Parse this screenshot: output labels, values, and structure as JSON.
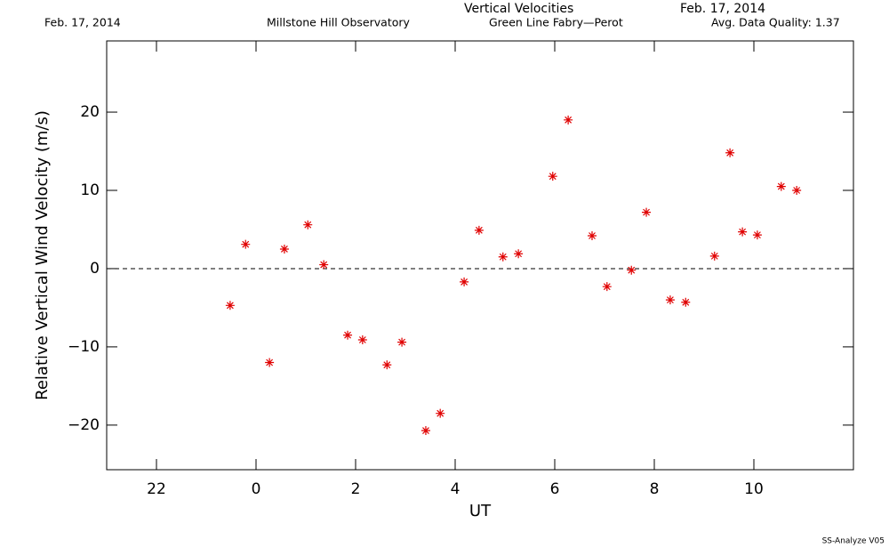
{
  "chart_data": {
    "type": "scatter",
    "title": "Vertical Velocities",
    "date_left": "Feb. 17, 2014",
    "observatory": "Millstone Hill Observatory",
    "instrument": "Green Line Fabry—Perot",
    "date_right": "Feb. 17, 2014",
    "quality": "Avg. Data Quality: 1.37",
    "footer": "SS-Analyze V05",
    "x_label": "UT",
    "y_label": "Relative Vertical Wind Velocity (m/s)",
    "color": "#e00000",
    "marker": "asterisk",
    "zero_line": {
      "value": 0,
      "style": "dashed"
    },
    "xlim": [
      -3,
      12
    ],
    "ylim": [
      -25.7,
      29.1
    ],
    "xticks": [
      {
        "value": -2,
        "label": "22"
      },
      0,
      2,
      4,
      6,
      8,
      10
    ],
    "yticks": [
      {
        "value": -20,
        "label": "−20"
      },
      {
        "value": -10,
        "label": "−10"
      },
      0,
      10,
      20
    ],
    "x": [
      -0.52,
      -0.21,
      0.27,
      0.57,
      1.04,
      1.36,
      1.84,
      2.14,
      2.63,
      2.93,
      3.41,
      3.7,
      4.18,
      4.48,
      4.96,
      5.27,
      5.96,
      6.27,
      6.75,
      7.05,
      7.54,
      7.84,
      8.32,
      8.63,
      9.21,
      9.52,
      9.77,
      10.07,
      10.55,
      10.86
    ],
    "values": [
      -4.7,
      3.1,
      -12.0,
      2.5,
      5.6,
      0.5,
      -8.5,
      -9.1,
      -12.3,
      -9.4,
      -20.7,
      -18.5,
      -1.7,
      4.9,
      1.5,
      1.9,
      11.8,
      19.0,
      4.2,
      -2.3,
      -0.2,
      7.2,
      -4.0,
      -4.3,
      1.6,
      14.8,
      4.7,
      4.3,
      10.5,
      10.0
    ]
  }
}
